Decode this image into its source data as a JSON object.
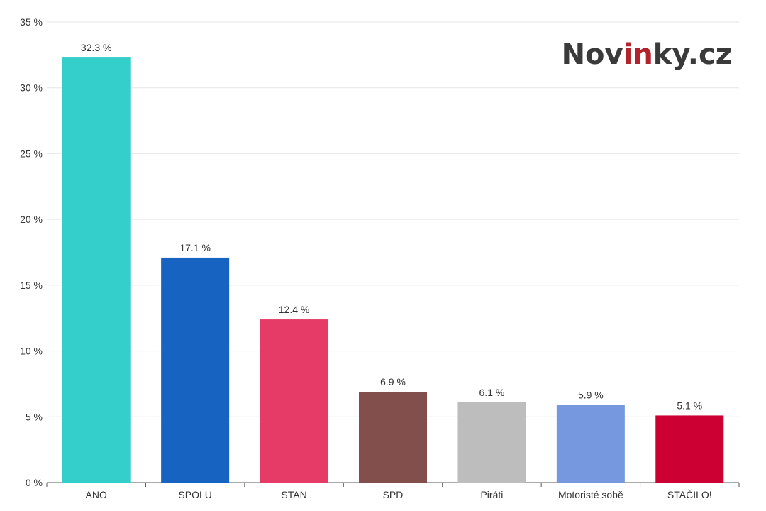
{
  "brand": {
    "logo_parts": [
      "Nov",
      "in",
      "ky.cz"
    ],
    "logo_colors": [
      "#3a3a3a",
      "#b3232e",
      "#3a3a3a"
    ]
  },
  "chart_data": {
    "type": "bar",
    "title": "",
    "xlabel": "",
    "ylabel": "",
    "ylim": [
      0,
      35
    ],
    "y_ticks": [
      0,
      5,
      10,
      15,
      20,
      25,
      30,
      35
    ],
    "y_tick_suffix": " %",
    "grid": true,
    "categories": [
      "ANO",
      "SPOLU",
      "STAN",
      "SPD",
      "Piráti",
      "Motoristé sobě",
      "STAČILO!"
    ],
    "values": [
      32.3,
      17.1,
      12.4,
      6.9,
      6.1,
      5.9,
      5.1
    ],
    "value_labels": [
      "32.3 %",
      "17.1 %",
      "12.4 %",
      "6.9 %",
      "6.1 %",
      "5.9 %",
      "5.1 %"
    ],
    "colors": [
      "#34cfca",
      "#1763c2",
      "#e63b66",
      "#824f4d",
      "#bdbdbd",
      "#7698de",
      "#cc0033"
    ]
  }
}
